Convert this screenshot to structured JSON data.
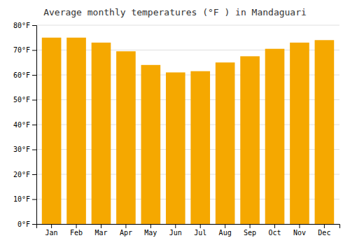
{
  "chart_data": {
    "type": "bar",
    "title": "Average monthly temperatures (°F ) in Mandaguari",
    "categories": [
      "Jan",
      "Feb",
      "Mar",
      "Apr",
      "May",
      "Jun",
      "Jul",
      "Aug",
      "Sep",
      "Oct",
      "Nov",
      "Dec"
    ],
    "values": [
      75,
      75,
      73,
      69.5,
      64,
      61,
      61.5,
      65,
      67.5,
      70.5,
      73,
      74
    ],
    "color": "#F5A800",
    "ylim": [
      0,
      80
    ],
    "yticks": [
      {
        "value": 0,
        "label": "0°F"
      },
      {
        "value": 10,
        "label": "10°F"
      },
      {
        "value": 20,
        "label": "20°F"
      },
      {
        "value": 30,
        "label": "30°F"
      },
      {
        "value": 40,
        "label": "40°F"
      },
      {
        "value": 50,
        "label": "50°F"
      },
      {
        "value": 60,
        "label": "60°F"
      },
      {
        "value": 70,
        "label": "70°F"
      },
      {
        "value": 80,
        "label": "80°F"
      }
    ],
    "grid": true
  }
}
